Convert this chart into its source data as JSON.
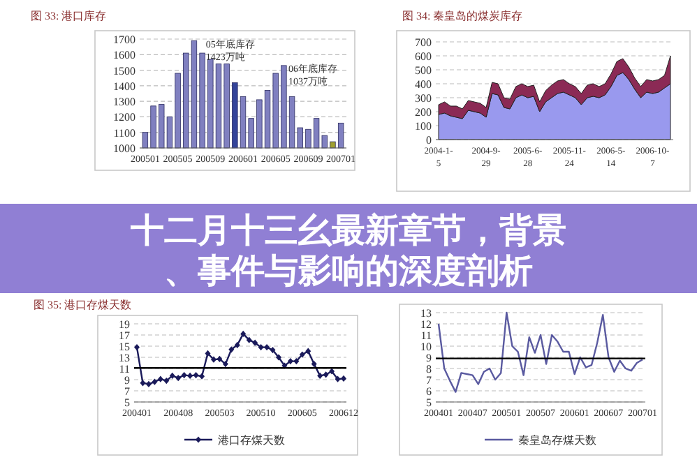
{
  "chart_data": [
    {
      "type": "bar",
      "title": "图 33: 港口库存",
      "categories": [
        "200501",
        null,
        null,
        null,
        "200505",
        null,
        null,
        null,
        "200509",
        null,
        null,
        null,
        "200601",
        null,
        null,
        null,
        "200605",
        null,
        null,
        null,
        "200609",
        null,
        null,
        null,
        "200701"
      ],
      "values": [
        1100,
        1270,
        1280,
        1200,
        1480,
        1610,
        1690,
        1610,
        1570,
        1540,
        1540,
        1420,
        1330,
        1190,
        1310,
        1370,
        1480,
        1530,
        1330,
        1130,
        1120,
        1190,
        1080,
        1040,
        1160
      ],
      "colors": [
        "#8080c0",
        "#8080c0",
        "#8080c0",
        "#8080c0",
        "#8080c0",
        "#8080c0",
        "#8080c0",
        "#8080c0",
        "#8080c0",
        "#8080c0",
        "#8080c0",
        "#34449a",
        "#8080c0",
        "#8080c0",
        "#8080c0",
        "#8080c0",
        "#8080c0",
        "#8080c0",
        "#8080c0",
        "#8080c0",
        "#8080c0",
        "#8080c0",
        "#8080c0",
        "#a0a030",
        "#8080c0"
      ],
      "ylim": [
        1000,
        1700
      ],
      "yticks": [
        1000,
        1100,
        1200,
        1300,
        1400,
        1500,
        1600,
        1700
      ],
      "grid": "y",
      "annotations": [
        "05年底库存\n1423万吨",
        "06年底库存\n1037万吨"
      ]
    },
    {
      "type": "area",
      "stacked": true,
      "title": "图 34: 秦皇岛的煤炭库存",
      "categories": [
        "2004-1-5",
        null,
        null,
        null,
        null,
        null,
        null,
        null,
        "2004-9-29",
        null,
        null,
        null,
        null,
        null,
        null,
        "2005-6-28",
        null,
        null,
        null,
        null,
        null,
        null,
        "2005-11-24",
        null,
        null,
        null,
        null,
        null,
        null,
        "2006-5-14",
        null,
        null,
        null,
        null,
        null,
        null,
        "2006-10-7",
        null,
        null,
        null
      ],
      "series": [
        {
          "color": "#9999ee",
          "values": [
            180,
            190,
            170,
            160,
            150,
            210,
            200,
            190,
            160,
            330,
            320,
            230,
            220,
            300,
            320,
            300,
            310,
            200,
            270,
            300,
            330,
            340,
            320,
            300,
            250,
            300,
            310,
            300,
            320,
            380,
            460,
            480,
            430,
            360,
            300,
            340,
            330,
            340,
            370,
            400
          ]
        },
        {
          "color": "#8b2a55",
          "values": [
            70,
            80,
            70,
            80,
            70,
            70,
            70,
            70,
            70,
            80,
            80,
            70,
            70,
            80,
            80,
            80,
            80,
            70,
            80,
            90,
            90,
            90,
            80,
            80,
            80,
            90,
            90,
            80,
            80,
            90,
            100,
            100,
            90,
            80,
            80,
            90,
            90,
            90,
            90,
            200
          ]
        }
      ],
      "ylim": [
        0,
        700
      ],
      "yticks": [
        0,
        100,
        200,
        300,
        400,
        500,
        600,
        700
      ],
      "grid": "y"
    },
    {
      "type": "other",
      "title": "十二月十三幺最新章节，背景",
      "subtitle": "、事件与影响的深度剖析"
    },
    {
      "type": "line",
      "title": "图 35: 港口存煤天数",
      "categories": [
        "200401",
        null,
        null,
        null,
        null,
        null,
        null,
        "200408",
        null,
        null,
        null,
        null,
        null,
        null,
        "200503",
        null,
        null,
        null,
        null,
        null,
        null,
        "200510",
        null,
        null,
        null,
        null,
        null,
        null,
        "200605",
        null,
        null,
        null,
        null,
        null,
        null,
        "200612"
      ],
      "series": [
        {
          "name": "港口存煤天数",
          "color": "#1a1a5a",
          "values": [
            14.8,
            8.4,
            8.2,
            8.6,
            9.1,
            8.8,
            9.7,
            9.3,
            9.8,
            9.7,
            9.8,
            9.6,
            13.7,
            12.6,
            12.7,
            11.8,
            14.4,
            15.2,
            17.2,
            16.1,
            15.6,
            14.8,
            14.8,
            14.3,
            13.0,
            11.5,
            12.3,
            12.3,
            13.5,
            14.1,
            11.8,
            9.7,
            9.9,
            10.5,
            9.1,
            9.2
          ]
        }
      ],
      "marker": "diamond",
      "ylim": [
        5,
        19
      ],
      "yticks": [
        5,
        7,
        9,
        11,
        13,
        15,
        17,
        19
      ],
      "grid": "y",
      "legend": "bottom",
      "ref_lines": [
        {
          "axis": "y",
          "value": 11.1,
          "color": "#000000"
        }
      ]
    },
    {
      "type": "line",
      "categories": [
        "200401",
        null,
        null,
        null,
        null,
        null,
        "200407",
        null,
        null,
        null,
        null,
        null,
        "200501",
        null,
        null,
        null,
        null,
        null,
        "200507",
        null,
        null,
        null,
        null,
        null,
        "200601",
        null,
        null,
        null,
        null,
        null,
        "200607",
        null,
        null,
        null,
        null,
        null,
        "200701"
      ],
      "series": [
        {
          "name": "秦皇岛存煤天数",
          "color": "#5a5aa0",
          "values": [
            12,
            8,
            6.9,
            5.9,
            7.6,
            7.5,
            7.4,
            6.6,
            7.7,
            8.0,
            7.0,
            7.6,
            13.0,
            10.0,
            9.5,
            7.4,
            10.8,
            9.4,
            11.0,
            8.4,
            11.0,
            10.4,
            9.5,
            9.5,
            7.5,
            9.0,
            8.1,
            8.3,
            10.3,
            12.8,
            9.0,
            7.7,
            8.7,
            8.0,
            7.8,
            8.5,
            8.8
          ]
        }
      ],
      "ylim": [
        5,
        13
      ],
      "yticks": [
        5,
        6,
        7,
        8,
        9,
        10,
        11,
        12,
        13
      ],
      "grid": "y",
      "legend": "bottom",
      "ref_lines": [
        {
          "axis": "y",
          "value": 8.9,
          "color": "#000000"
        }
      ]
    }
  ]
}
